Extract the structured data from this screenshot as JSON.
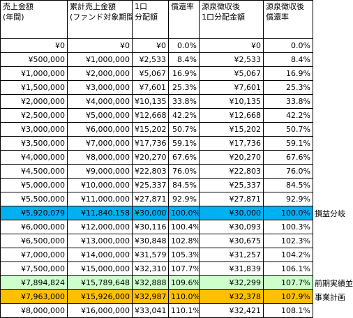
{
  "table": {
    "header": [
      [
        "売上金額",
        "(年間)"
      ],
      [
        "累計売上金額",
        "(ファンド対象期間)"
      ],
      [
        "1口",
        "分配額"
      ],
      [
        "償還率"
      ],
      [
        "源泉徴収後",
        "1口分配金額"
      ],
      [
        "源泉徴収後",
        "償還率"
      ]
    ],
    "rows": [
      {
        "cells": [
          "¥0",
          "¥0",
          "¥0",
          "0.0%",
          "¥0",
          "0.0%"
        ]
      },
      {
        "cells": [
          "¥500,000",
          "¥1,000,000",
          "¥2,533",
          "8.4%",
          "¥2,533",
          "8.4%"
        ]
      },
      {
        "cells": [
          "¥1,000,000",
          "¥2,000,000",
          "¥5,067",
          "16.9%",
          "¥5,067",
          "16.9%"
        ]
      },
      {
        "cells": [
          "¥1,500,000",
          "¥3,000,000",
          "¥7,601",
          "25.3%",
          "¥7,601",
          "25.3%"
        ]
      },
      {
        "cells": [
          "¥2,000,000",
          "¥4,000,000",
          "¥10,135",
          "33.8%",
          "¥10,135",
          "33.8%"
        ]
      },
      {
        "cells": [
          "¥2,500,000",
          "¥5,000,000",
          "¥12,668",
          "42.2%",
          "¥12,668",
          "42.2%"
        ]
      },
      {
        "cells": [
          "¥3,000,000",
          "¥6,000,000",
          "¥15,202",
          "50.7%",
          "¥15,202",
          "50.7%"
        ]
      },
      {
        "cells": [
          "¥3,500,000",
          "¥7,000,000",
          "¥17,736",
          "59.1%",
          "¥17,736",
          "59.1%"
        ]
      },
      {
        "cells": [
          "¥4,000,000",
          "¥8,000,000",
          "¥20,270",
          "67.6%",
          "¥20,270",
          "67.6%"
        ]
      },
      {
        "cells": [
          "¥4,500,000",
          "¥9,000,000",
          "¥22,803",
          "76.0%",
          "¥22,803",
          "76.0%"
        ]
      },
      {
        "cells": [
          "¥5,000,000",
          "¥10,000,000",
          "¥25,337",
          "84.5%",
          "¥25,337",
          "84.5%"
        ]
      },
      {
        "cells": [
          "¥5,500,000",
          "¥11,000,000",
          "¥27,871",
          "92.9%",
          "¥27,871",
          "92.9%"
        ]
      },
      {
        "cells": [
          "¥5,920,079",
          "¥11,840,158",
          "¥30,000",
          "100.0%",
          "¥30,000",
          "100.0%"
        ],
        "note": "損益分岐"
      },
      {
        "cells": [
          "¥6,000,000",
          "¥12,000,000",
          "¥30,116",
          "100.4%",
          "¥30,093",
          "100.3%"
        ]
      },
      {
        "cells": [
          "¥6,500,000",
          "¥13,000,000",
          "¥30,848",
          "102.8%",
          "¥30,675",
          "102.3%"
        ]
      },
      {
        "cells": [
          "¥7,000,000",
          "¥14,000,000",
          "¥31,579",
          "105.3%",
          "¥31,257",
          "104.2%"
        ]
      },
      {
        "cells": [
          "¥7,500,000",
          "¥15,000,000",
          "¥32,310",
          "107.7%",
          "¥31,839",
          "106.1%"
        ]
      },
      {
        "cells": [
          "¥7,894,824",
          "¥15,789,648",
          "¥32,888",
          "109.6%",
          "¥32,299",
          "107.7%"
        ],
        "note": "前期実績並"
      },
      {
        "cells": [
          "¥7,963,000",
          "¥15,926,000",
          "¥32,987",
          "110.0%",
          "¥32,378",
          "107.9%"
        ],
        "note": "事業計画"
      },
      {
        "cells": [
          "¥8,000,000",
          "¥16,000,000",
          "¥33,041",
          "110.1%",
          "¥32,421",
          "108.1%"
        ]
      }
    ]
  }
}
